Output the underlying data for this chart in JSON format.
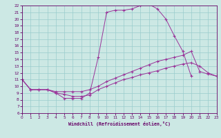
{
  "xlabel": "Windchill (Refroidissement éolien,°C)",
  "bg_color": "#cce8e4",
  "line_color": "#993399",
  "grid_color": "#99cccc",
  "xlim": [
    0,
    23
  ],
  "ylim": [
    6,
    22
  ],
  "xticks": [
    0,
    1,
    2,
    3,
    4,
    5,
    6,
    7,
    8,
    9,
    10,
    11,
    12,
    13,
    14,
    15,
    16,
    17,
    18,
    19,
    20,
    21,
    22,
    23
  ],
  "yticks": [
    6,
    7,
    8,
    9,
    10,
    11,
    12,
    13,
    14,
    15,
    16,
    17,
    18,
    19,
    20,
    21,
    22
  ],
  "line1_x": [
    0,
    1,
    2,
    3,
    4,
    5,
    6,
    7,
    8,
    9,
    10,
    11,
    12,
    13,
    14,
    15,
    16,
    17,
    18,
    19,
    20,
    21,
    22,
    23
  ],
  "line1_y": [
    11.0,
    9.5,
    9.5,
    9.5,
    9.0,
    8.2,
    8.2,
    8.2,
    9.0,
    14.3,
    21.0,
    21.3,
    21.3,
    21.5,
    22.0,
    22.2,
    21.5,
    20.0,
    17.5,
    15.2,
    11.5,
    null,
    null,
    null
  ],
  "line2_x": [
    0,
    1,
    2,
    3,
    4,
    5,
    6,
    7,
    8,
    9,
    10,
    11,
    12,
    13,
    14,
    15,
    16,
    17,
    18,
    19,
    20,
    21,
    22,
    23
  ],
  "line2_y": [
    11.0,
    9.5,
    9.5,
    9.5,
    9.2,
    9.2,
    9.2,
    9.2,
    9.5,
    10.0,
    10.7,
    11.2,
    11.7,
    12.2,
    12.7,
    13.2,
    13.7,
    14.0,
    14.3,
    14.6,
    15.2,
    12.2,
    11.8,
    11.5
  ],
  "line3_x": [
    0,
    1,
    2,
    3,
    4,
    5,
    6,
    7,
    8,
    9,
    10,
    11,
    12,
    13,
    14,
    15,
    16,
    17,
    18,
    19,
    20,
    21,
    22,
    23
  ],
  "line3_y": [
    11.0,
    9.5,
    9.5,
    9.5,
    9.0,
    8.8,
    8.5,
    8.5,
    8.7,
    9.5,
    10.0,
    10.5,
    11.0,
    11.3,
    11.7,
    12.0,
    12.3,
    12.7,
    13.0,
    13.3,
    13.5,
    13.0,
    12.0,
    11.5
  ]
}
